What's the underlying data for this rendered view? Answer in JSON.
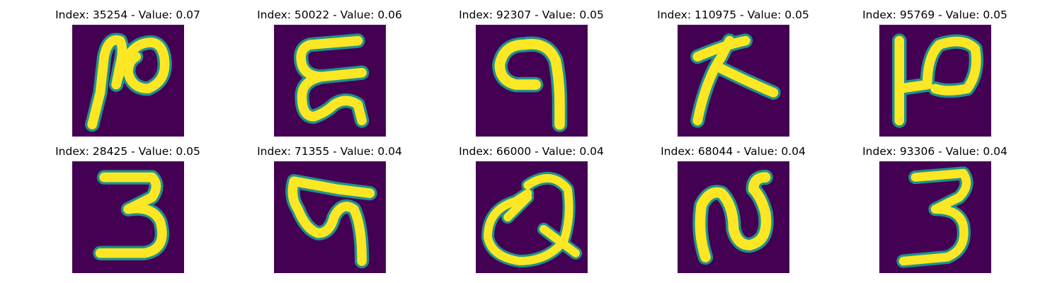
{
  "figure": {
    "colors": {
      "background": "#440154",
      "edge": "#21918c",
      "stroke": "#fde725"
    },
    "panels": [
      {
        "title": "Index: 35254 - Value: 0.07",
        "index": "35254",
        "value": 0.07
      },
      {
        "title": "Index: 50022 - Value: 0.06",
        "index": "50022",
        "value": 0.06
      },
      {
        "title": "Index: 92307 - Value: 0.05",
        "index": "92307",
        "value": 0.05
      },
      {
        "title": "Index: 110975 - Value: 0.05",
        "index": "110975",
        "value": 0.05
      },
      {
        "title": "Index: 95769 - Value: 0.05",
        "index": "95769",
        "value": 0.05
      },
      {
        "title": "Index: 28425 - Value: 0.05",
        "index": "28425",
        "value": 0.05
      },
      {
        "title": "Index: 71355 - Value: 0.04",
        "index": "71355",
        "value": 0.04
      },
      {
        "title": "Index: 66000 - Value: 0.04",
        "index": "66000",
        "value": 0.04
      },
      {
        "title": "Index: 68044 - Value: 0.04",
        "index": "68044",
        "value": 0.04
      },
      {
        "title": "Index: 93306 - Value: 0.04",
        "index": "93306",
        "value": 0.04
      }
    ]
  }
}
